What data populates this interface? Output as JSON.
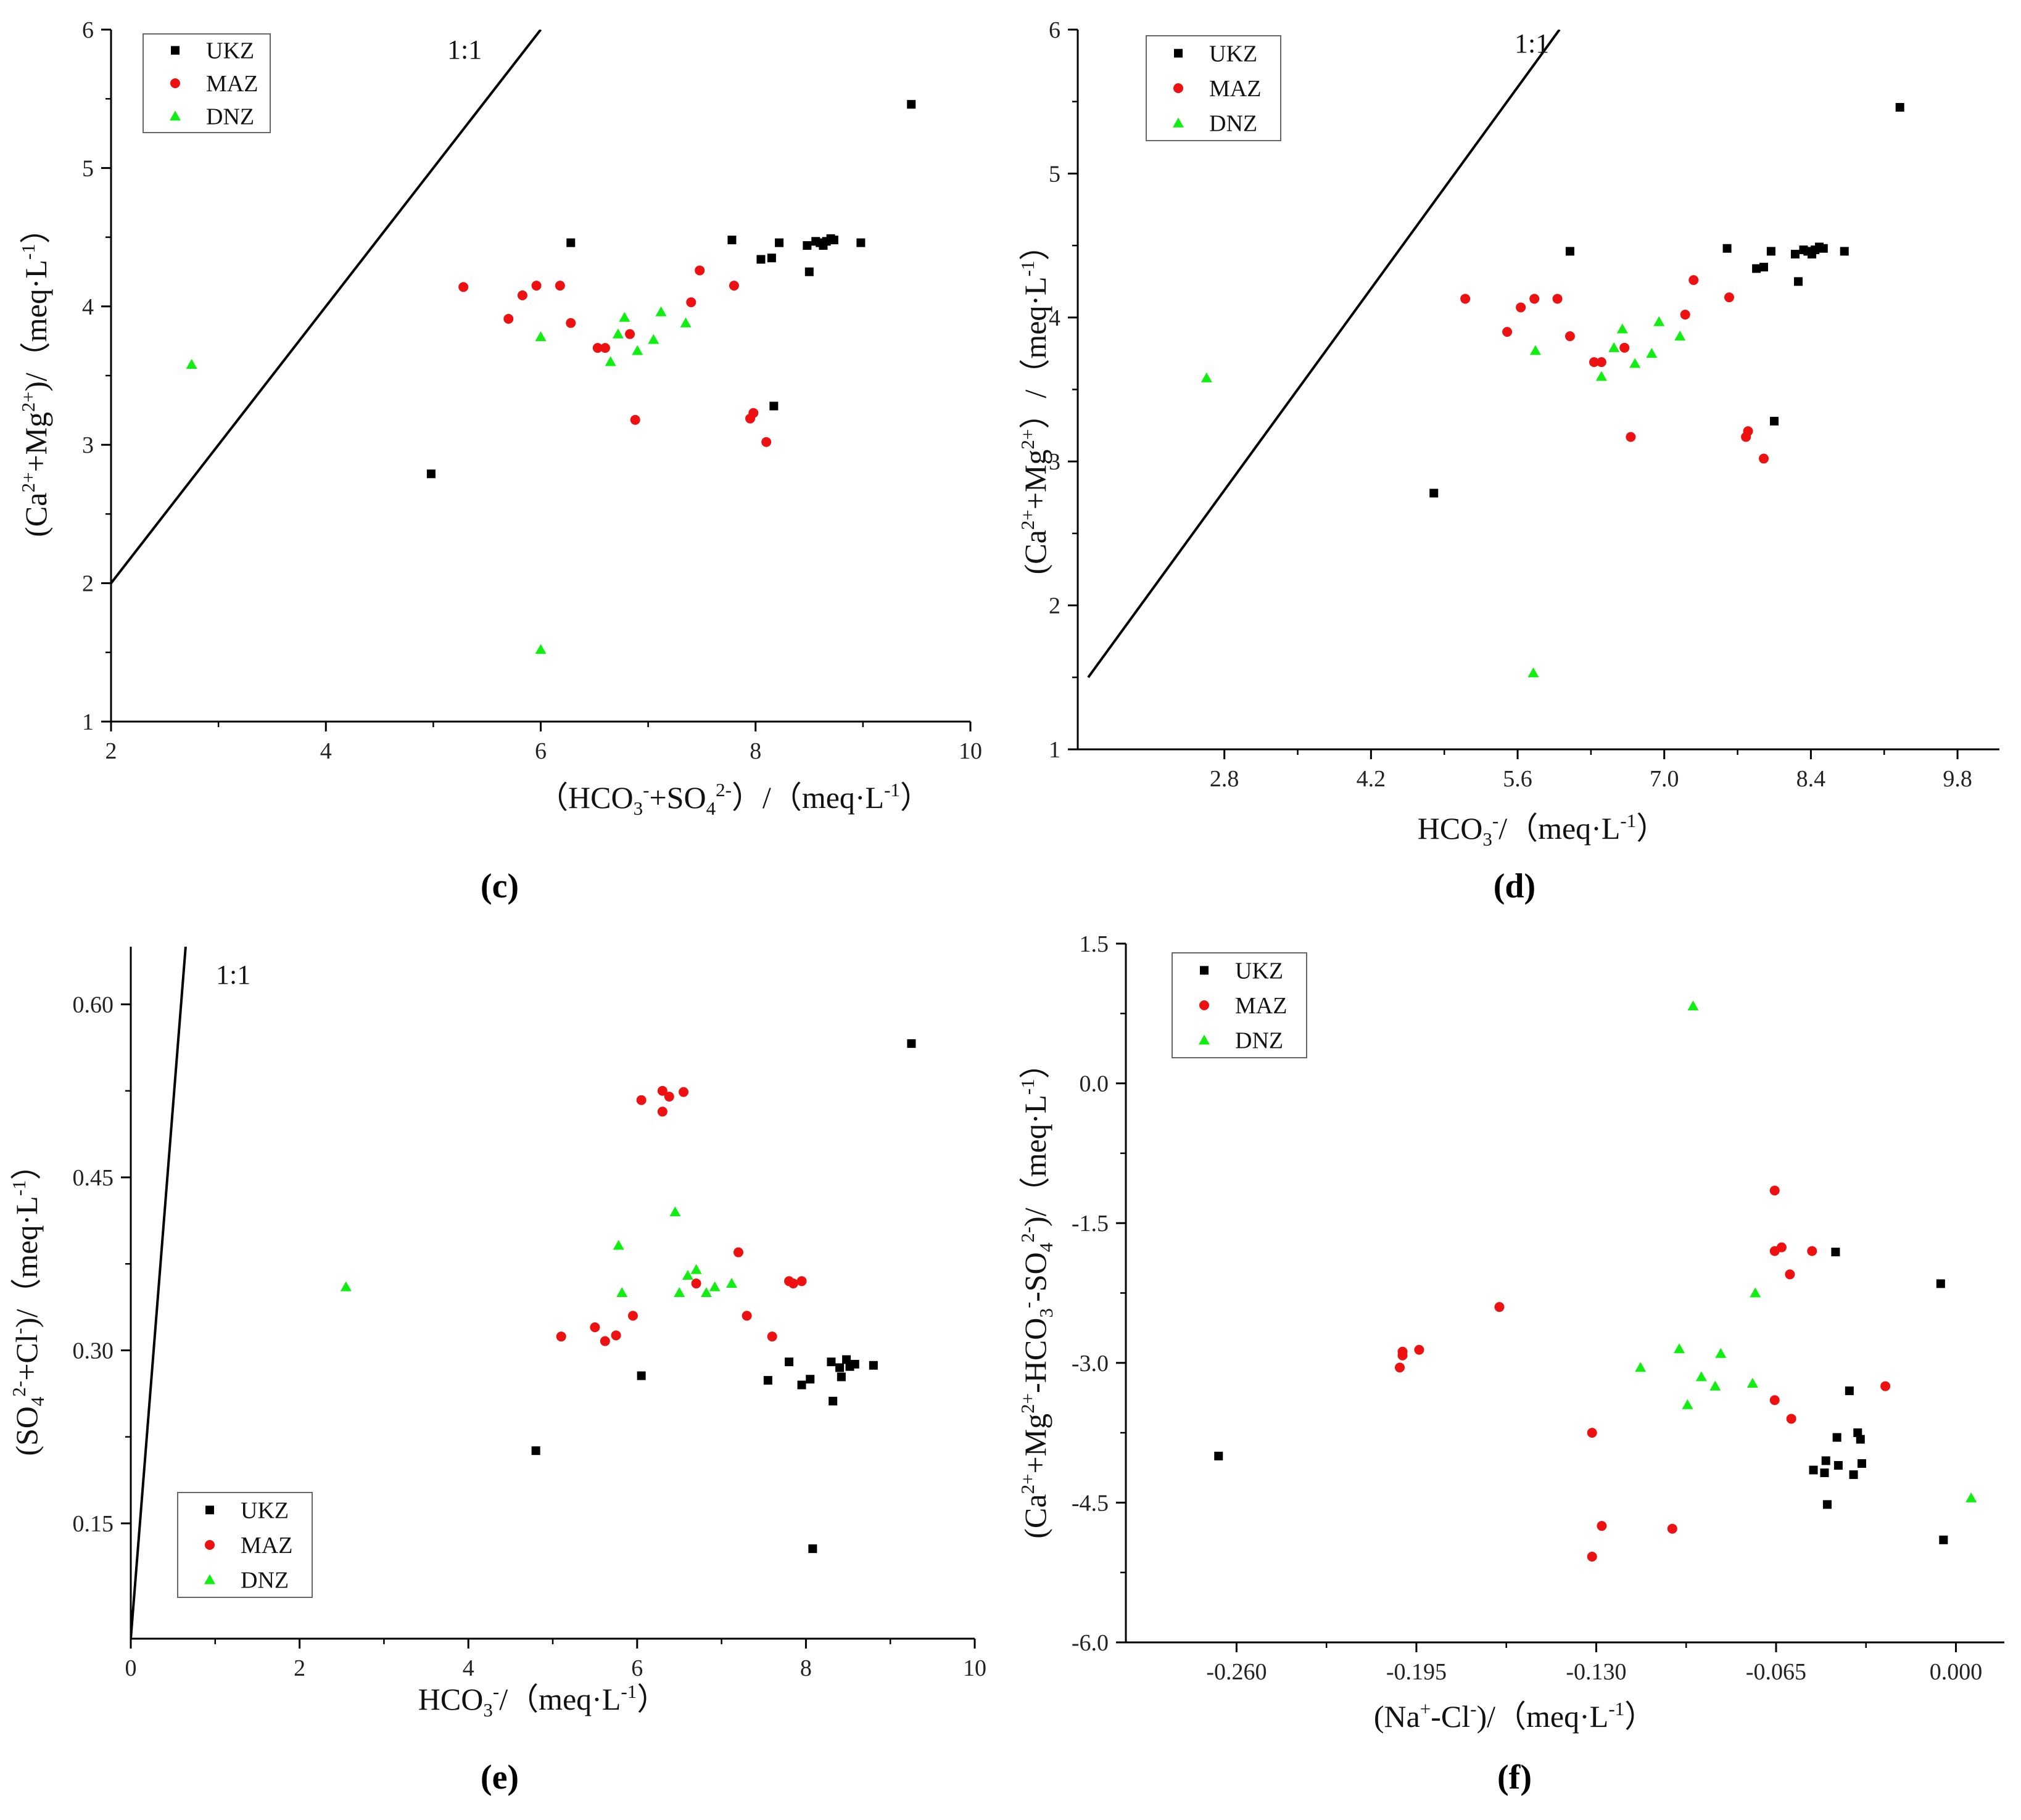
{
  "figure": {
    "legend_entries": [
      "UKZ",
      "MAZ",
      "DNZ"
    ],
    "colors": {
      "UKZ": "#000000",
      "MAZ": "#ee1111",
      "DNZ": "#11ee11"
    }
  },
  "chart_data": [
    {
      "type": "scatter",
      "panel_label": "(c)",
      "xlabel": "(HCO3- + SO4 2-) / (meq·L-1)",
      "ylabel": "(Ca2+ + Mg2+) / (meq·L-1)",
      "xlim": [
        2,
        10
      ],
      "ylim": [
        1,
        6
      ],
      "xticks": [
        2,
        4,
        6,
        8,
        10
      ],
      "xtick_labels": [
        "2",
        "4",
        "6",
        "8",
        "10"
      ],
      "yticks": [
        1,
        2,
        3,
        4,
        5,
        6
      ],
      "ytick_labels": [
        "1",
        "2",
        "3",
        "4",
        "5",
        "6"
      ],
      "ratio_line": {
        "label": "1:1",
        "from": [
          2,
          2
        ],
        "to": [
          6,
          6
        ]
      },
      "legend_position": "top-left",
      "series": [
        {
          "name": "UKZ",
          "marker": "square",
          "points": [
            [
              4.98,
              2.79
            ],
            [
              6.28,
              4.46
            ],
            [
              7.78,
              4.48
            ],
            [
              8.05,
              4.34
            ],
            [
              8.15,
              4.35
            ],
            [
              8.22,
              4.46
            ],
            [
              8.48,
              4.44
            ],
            [
              8.5,
              4.25
            ],
            [
              8.56,
              4.47
            ],
            [
              8.6,
              4.46
            ],
            [
              8.63,
              4.44
            ],
            [
              8.66,
              4.47
            ],
            [
              8.7,
              4.49
            ],
            [
              8.73,
              4.48
            ],
            [
              8.98,
              4.46
            ],
            [
              9.45,
              5.46
            ],
            [
              8.17,
              3.28
            ]
          ]
        },
        {
          "name": "MAZ",
          "marker": "circle",
          "points": [
            [
              5.28,
              4.14
            ],
            [
              5.7,
              3.91
            ],
            [
              5.83,
              4.08
            ],
            [
              5.96,
              4.15
            ],
            [
              6.18,
              4.15
            ],
            [
              6.28,
              3.88
            ],
            [
              6.53,
              3.7
            ],
            [
              6.6,
              3.7
            ],
            [
              6.83,
              3.8
            ],
            [
              6.88,
              3.18
            ],
            [
              7.4,
              4.03
            ],
            [
              7.48,
              4.26
            ],
            [
              7.8,
              4.15
            ],
            [
              7.95,
              3.19
            ],
            [
              7.98,
              3.23
            ],
            [
              8.1,
              3.02
            ]
          ]
        },
        {
          "name": "DNZ",
          "marker": "triangle",
          "points": [
            [
              2.75,
              3.58
            ],
            [
              6.0,
              3.78
            ],
            [
              6.0,
              1.52
            ],
            [
              6.65,
              3.6
            ],
            [
              6.72,
              3.8
            ],
            [
              6.78,
              3.92
            ],
            [
              6.9,
              3.68
            ],
            [
              7.05,
              3.76
            ],
            [
              7.12,
              3.96
            ],
            [
              7.35,
              3.88
            ]
          ]
        }
      ]
    },
    {
      "type": "scatter",
      "panel_label": "(d)",
      "xlabel": "HCO3- / (meq·L-1)",
      "ylabel": "(Ca2+ + Mg2+) / (meq·L-1)",
      "xlim": [
        1.4,
        10.2
      ],
      "ylim": [
        1,
        6
      ],
      "xticks": [
        2.8,
        4.2,
        5.6,
        7.0,
        8.4,
        9.8
      ],
      "xtick_labels": [
        "2.8",
        "4.2",
        "5.6",
        "7.0",
        "8.4",
        "9.8"
      ],
      "yticks": [
        1,
        2,
        3,
        4,
        5,
        6
      ],
      "ytick_labels": [
        "1",
        "2",
        "3",
        "4",
        "5",
        "6"
      ],
      "ratio_line": {
        "label": "1:1",
        "from": [
          1.5,
          1.5
        ],
        "to": [
          6,
          6
        ]
      },
      "legend_position": "top-left",
      "series": [
        {
          "name": "UKZ",
          "marker": "square",
          "points": [
            [
              4.8,
              2.78
            ],
            [
              6.1,
              4.46
            ],
            [
              7.6,
              4.48
            ],
            [
              7.88,
              4.34
            ],
            [
              7.95,
              4.35
            ],
            [
              8.02,
              4.46
            ],
            [
              8.25,
              4.44
            ],
            [
              8.28,
              4.25
            ],
            [
              8.33,
              4.47
            ],
            [
              8.37,
              4.46
            ],
            [
              8.41,
              4.44
            ],
            [
              8.44,
              4.47
            ],
            [
              8.48,
              4.49
            ],
            [
              8.52,
              4.48
            ],
            [
              8.72,
              4.46
            ],
            [
              9.25,
              5.46
            ],
            [
              8.05,
              3.28
            ]
          ]
        },
        {
          "name": "MAZ",
          "marker": "circle",
          "points": [
            [
              5.1,
              4.13
            ],
            [
              5.5,
              3.9
            ],
            [
              5.63,
              4.07
            ],
            [
              5.76,
              4.13
            ],
            [
              5.98,
              4.13
            ],
            [
              6.1,
              3.87
            ],
            [
              6.33,
              3.69
            ],
            [
              6.4,
              3.69
            ],
            [
              6.62,
              3.79
            ],
            [
              6.68,
              3.17
            ],
            [
              7.2,
              4.02
            ],
            [
              7.28,
              4.26
            ],
            [
              7.62,
              4.14
            ],
            [
              7.78,
              3.17
            ],
            [
              7.8,
              3.21
            ],
            [
              7.95,
              3.02
            ]
          ]
        },
        {
          "name": "DNZ",
          "marker": "triangle",
          "points": [
            [
              2.63,
              3.58
            ],
            [
              5.77,
              3.77
            ],
            [
              5.75,
              1.53
            ],
            [
              6.4,
              3.59
            ],
            [
              6.52,
              3.79
            ],
            [
              6.6,
              3.92
            ],
            [
              6.72,
              3.68
            ],
            [
              6.88,
              3.75
            ],
            [
              6.95,
              3.97
            ],
            [
              7.15,
              3.87
            ]
          ]
        }
      ]
    },
    {
      "type": "scatter",
      "panel_label": "(e)",
      "xlabel": "HCO3- / (meq·L-1)",
      "ylabel": "(SO4 2- + Cl-) / (meq·L-1)",
      "xlim": [
        0,
        10
      ],
      "ylim": [
        0.05,
        0.65
      ],
      "xticks": [
        0,
        2,
        4,
        6,
        8,
        10
      ],
      "xtick_labels": [
        "0",
        "2",
        "4",
        "6",
        "8",
        "10"
      ],
      "yticks": [
        0.15,
        0.3,
        0.45,
        0.6
      ],
      "ytick_labels": [
        "0.15",
        "0.30",
        "0.45",
        "0.60"
      ],
      "ratio_line": {
        "label": "1:1",
        "from": [
          0,
          0.05
        ],
        "to": [
          0.65,
          0.65
        ]
      },
      "legend_position": "bottom-left",
      "series": [
        {
          "name": "UKZ",
          "marker": "square",
          "points": [
            [
              4.8,
              0.213
            ],
            [
              6.05,
              0.278
            ],
            [
              7.55,
              0.274
            ],
            [
              7.8,
              0.29
            ],
            [
              7.95,
              0.27
            ],
            [
              8.05,
              0.275
            ],
            [
              8.08,
              0.128
            ],
            [
              8.3,
              0.29
            ],
            [
              8.32,
              0.256
            ],
            [
              8.4,
              0.285
            ],
            [
              8.42,
              0.277
            ],
            [
              8.48,
              0.292
            ],
            [
              8.52,
              0.286
            ],
            [
              8.58,
              0.288
            ],
            [
              8.8,
              0.287
            ],
            [
              9.25,
              0.566
            ]
          ]
        },
        {
          "name": "MAZ",
          "marker": "circle",
          "points": [
            [
              5.1,
              0.312
            ],
            [
              5.5,
              0.32
            ],
            [
              5.62,
              0.308
            ],
            [
              5.75,
              0.313
            ],
            [
              5.95,
              0.33
            ],
            [
              6.05,
              0.517
            ],
            [
              6.3,
              0.507
            ],
            [
              6.3,
              0.525
            ],
            [
              6.38,
              0.52
            ],
            [
              6.55,
              0.524
            ],
            [
              6.7,
              0.358
            ],
            [
              7.2,
              0.385
            ],
            [
              7.3,
              0.33
            ],
            [
              7.6,
              0.312
            ],
            [
              7.8,
              0.36
            ],
            [
              7.85,
              0.358
            ],
            [
              7.95,
              0.36
            ]
          ]
        },
        {
          "name": "DNZ",
          "marker": "triangle",
          "points": [
            [
              2.55,
              0.355
            ],
            [
              5.78,
              0.391
            ],
            [
              5.82,
              0.35
            ],
            [
              6.45,
              0.42
            ],
            [
              6.5,
              0.35
            ],
            [
              6.6,
              0.365
            ],
            [
              6.7,
              0.37
            ],
            [
              6.82,
              0.35
            ],
            [
              6.92,
              0.355
            ],
            [
              7.12,
              0.358
            ]
          ]
        }
      ]
    },
    {
      "type": "scatter",
      "panel_label": "(f)",
      "xlabel": "(Na+ - Cl-) / (meq·L-1)",
      "ylabel": "(Ca2+ + Mg2+ - HCO3- - SO4 2-) / (meq·L-1)",
      "xlim": [
        -0.3,
        0.0175
      ],
      "ylim": [
        -6.0,
        1.5
      ],
      "xticks": [
        -0.26,
        -0.195,
        -0.13,
        -0.065,
        0.0
      ],
      "xtick_labels": [
        "-0.260",
        "-0.195",
        "-0.130",
        "-0.065",
        "0.000"
      ],
      "yticks": [
        -6.0,
        -4.5,
        -3.0,
        -1.5,
        0.0,
        1.5
      ],
      "ytick_labels": [
        "-6.0",
        "-4.5",
        "-3.0",
        "-1.5",
        "0.0",
        "1.5"
      ],
      "legend_position": "top-left",
      "series": [
        {
          "name": "UKZ",
          "marker": "square",
          "points": [
            [
              -0.2665,
              -4.0
            ],
            [
              -0.0515,
              -4.15
            ],
            [
              -0.0475,
              -4.18
            ],
            [
              -0.047,
              -4.05
            ],
            [
              -0.0465,
              -4.52
            ],
            [
              -0.0435,
              -1.81
            ],
            [
              -0.043,
              -3.8
            ],
            [
              -0.0425,
              -4.1
            ],
            [
              -0.0385,
              -3.3
            ],
            [
              -0.037,
              -4.2
            ],
            [
              -0.0355,
              -3.75
            ],
            [
              -0.0345,
              -3.82
            ],
            [
              -0.034,
              -4.08
            ],
            [
              -0.0055,
              -2.15
            ],
            [
              -0.0045,
              -4.9
            ]
          ]
        },
        {
          "name": "MAZ",
          "marker": "circle",
          "points": [
            [
              -0.201,
              -3.05
            ],
            [
              -0.2,
              -2.88
            ],
            [
              -0.2,
              -2.92
            ],
            [
              -0.194,
              -2.86
            ],
            [
              -0.165,
              -2.4
            ],
            [
              -0.1315,
              -3.75
            ],
            [
              -0.1315,
              -5.08
            ],
            [
              -0.128,
              -4.75
            ],
            [
              -0.1025,
              -4.78
            ],
            [
              -0.0655,
              -1.15
            ],
            [
              -0.0655,
              -1.8
            ],
            [
              -0.0655,
              -3.4
            ],
            [
              -0.063,
              -1.76
            ],
            [
              -0.06,
              -2.05
            ],
            [
              -0.0595,
              -3.6
            ],
            [
              -0.052,
              -1.8
            ],
            [
              -0.0255,
              -3.25
            ]
          ]
        },
        {
          "name": "DNZ",
          "marker": "triangle",
          "points": [
            [
              -0.114,
              -3.05
            ],
            [
              -0.1,
              -2.85
            ],
            [
              -0.097,
              -3.45
            ],
            [
              -0.095,
              0.83
            ],
            [
              -0.092,
              -3.15
            ],
            [
              -0.087,
              -3.25
            ],
            [
              -0.085,
              -2.9
            ],
            [
              -0.0735,
              -3.22
            ],
            [
              -0.0725,
              -2.25
            ],
            [
              0.0055,
              -4.45
            ]
          ]
        }
      ]
    }
  ]
}
